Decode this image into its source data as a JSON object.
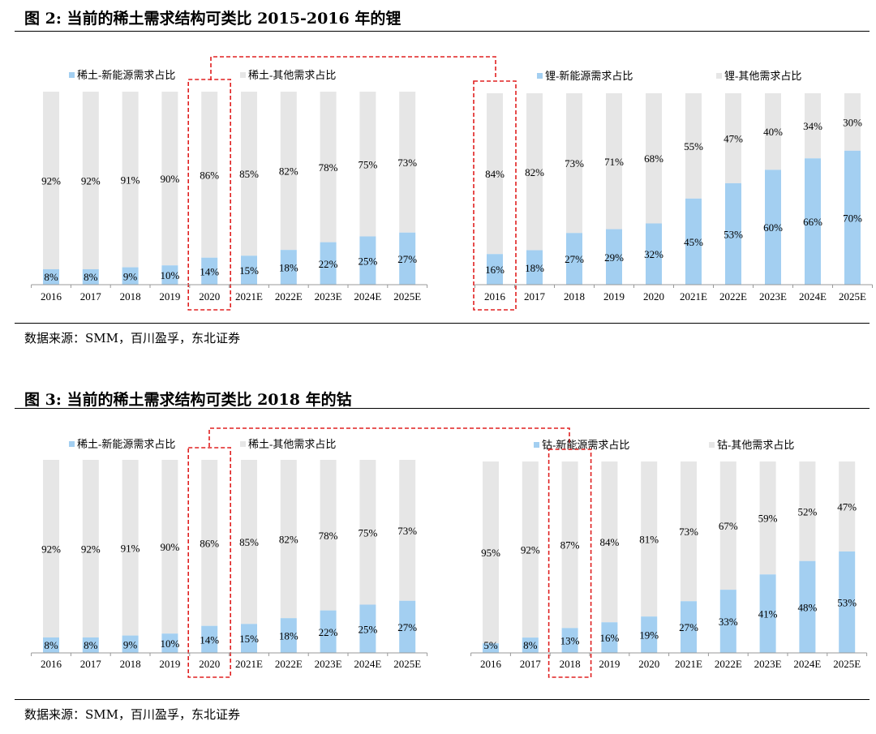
{
  "colors": {
    "new_energy": "#a3cff1",
    "other": "#e6e6e6",
    "axis": "#999999",
    "highlight": "#e02020"
  },
  "figure2": {
    "title": "图 2: 当前的稀土需求结构可类比 2015-2016 年的锂",
    "source": "数据来源：SMM，百川盈孚，东北证券"
  },
  "figure3": {
    "title": "图 3: 当前的稀土需求结构可类比 2018 年的钴",
    "source": "数据来源：SMM，百川盈孚，东北证券"
  },
  "chart_data": [
    {
      "id": "fig2-rare-earth",
      "type": "bar",
      "stacked": true,
      "title": "",
      "legend": [
        "稀土-新能源需求占比",
        "稀土-其他需求占比"
      ],
      "categories": [
        "2016",
        "2017",
        "2018",
        "2019",
        "2020",
        "2021E",
        "2022E",
        "2023E",
        "2024E",
        "2025E"
      ],
      "series": [
        {
          "name": "稀土-新能源需求占比",
          "values": [
            8,
            8,
            9,
            10,
            14,
            15,
            18,
            22,
            25,
            27
          ],
          "labels": [
            "8%",
            "8%",
            "9%",
            "10%",
            "14%",
            "15%",
            "18%",
            "22%",
            "25%",
            "27%"
          ]
        },
        {
          "name": "稀土-其他需求占比",
          "values": [
            92,
            92,
            91,
            90,
            86,
            85,
            82,
            78,
            75,
            73
          ],
          "labels": [
            "92%",
            "92%",
            "91%",
            "90%",
            "86%",
            "85%",
            "82%",
            "78%",
            "75%",
            "73%"
          ]
        }
      ],
      "ylim": [
        0,
        100
      ],
      "highlight_category": "2020"
    },
    {
      "id": "fig2-lithium",
      "type": "bar",
      "stacked": true,
      "title": "",
      "legend": [
        "锂-新能源需求占比",
        "锂-其他需求占比"
      ],
      "categories": [
        "2016",
        "2017",
        "2018",
        "2019",
        "2020",
        "2021E",
        "2022E",
        "2023E",
        "2024E",
        "2025E"
      ],
      "series": [
        {
          "name": "锂-新能源需求占比",
          "values": [
            16,
            18,
            27,
            29,
            32,
            45,
            53,
            60,
            66,
            70
          ],
          "labels": [
            "16%",
            "18%",
            "27%",
            "29%",
            "32%",
            "45%",
            "53%",
            "60%",
            "66%",
            "70%"
          ]
        },
        {
          "name": "锂-其他需求占比",
          "values": [
            84,
            82,
            73,
            71,
            68,
            55,
            47,
            40,
            34,
            30
          ],
          "labels": [
            "84%",
            "82%",
            "73%",
            "71%",
            "68%",
            "55%",
            "47%",
            "40%",
            "34%",
            "30%"
          ]
        }
      ],
      "ylim": [
        0,
        100
      ],
      "highlight_category": "2016"
    },
    {
      "id": "fig3-rare-earth",
      "type": "bar",
      "stacked": true,
      "title": "",
      "legend": [
        "稀土-新能源需求占比",
        "稀土-其他需求占比"
      ],
      "categories": [
        "2016",
        "2017",
        "2018",
        "2019",
        "2020",
        "2021E",
        "2022E",
        "2023E",
        "2024E",
        "2025E"
      ],
      "series": [
        {
          "name": "稀土-新能源需求占比",
          "values": [
            8,
            8,
            9,
            10,
            14,
            15,
            18,
            22,
            25,
            27
          ],
          "labels": [
            "8%",
            "8%",
            "9%",
            "10%",
            "14%",
            "15%",
            "18%",
            "22%",
            "25%",
            "27%"
          ]
        },
        {
          "name": "稀土-其他需求占比",
          "values": [
            92,
            92,
            91,
            90,
            86,
            85,
            82,
            78,
            75,
            73
          ],
          "labels": [
            "92%",
            "92%",
            "91%",
            "90%",
            "86%",
            "85%",
            "82%",
            "78%",
            "75%",
            "73%"
          ]
        }
      ],
      "ylim": [
        0,
        100
      ],
      "highlight_category": "2020"
    },
    {
      "id": "fig3-cobalt",
      "type": "bar",
      "stacked": true,
      "title": "",
      "legend": [
        "钴-新能源需求占比",
        "钴-其他需求占比"
      ],
      "categories": [
        "2016",
        "2017",
        "2018",
        "2019",
        "2020",
        "2021E",
        "2022E",
        "2023E",
        "2024E",
        "2025E"
      ],
      "series": [
        {
          "name": "钴-新能源需求占比",
          "values": [
            5,
            8,
            13,
            16,
            19,
            27,
            33,
            41,
            48,
            53
          ],
          "labels": [
            "5%",
            "8%",
            "13%",
            "16%",
            "19%",
            "27%",
            "33%",
            "41%",
            "48%",
            "53%"
          ]
        },
        {
          "name": "钴-其他需求占比",
          "values": [
            95,
            92,
            87,
            84,
            81,
            73,
            67,
            59,
            52,
            47
          ],
          "labels": [
            "95%",
            "92%",
            "87%",
            "84%",
            "81%",
            "73%",
            "67%",
            "59%",
            "52%",
            "47%"
          ]
        }
      ],
      "ylim": [
        0,
        100
      ],
      "highlight_category": "2018"
    }
  ]
}
